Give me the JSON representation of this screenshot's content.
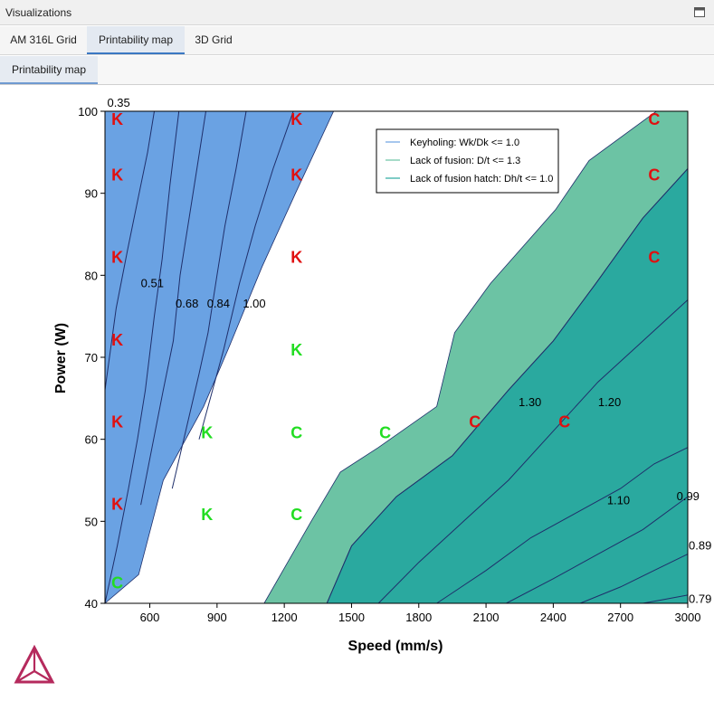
{
  "window": {
    "title": "Visualizations",
    "maximize_icon": "restore-window-icon"
  },
  "tabs": [
    {
      "label": "AM 316L Grid",
      "active": false
    },
    {
      "label": "Printability map",
      "active": true
    },
    {
      "label": "3D Grid",
      "active": false
    }
  ],
  "subtab": {
    "label": "Printability map"
  },
  "logo": {
    "icon": "thermo-calc-logo"
  },
  "colors": {
    "keyhole_fill": "#6aa2e3",
    "lof_light": "#6cc3a4",
    "lof_dark": "#2aa99f",
    "contour": "#1f2f6b",
    "marker_red": "#e01010",
    "marker_green": "#22dd22"
  },
  "chart_data": {
    "type": "contour",
    "xlabel": "Speed (mm/s)",
    "ylabel": "Power (W)",
    "xlim": [
      400,
      3000
    ],
    "ylim": [
      40,
      100
    ],
    "xticks": [
      "600",
      "900",
      "1200",
      "1500",
      "1800",
      "2100",
      "2400",
      "2700",
      "3000"
    ],
    "yticks": [
      "40",
      "50",
      "60",
      "70",
      "80",
      "90",
      "100"
    ],
    "legend": {
      "placement": "top-right",
      "entries": [
        "Keyholing: Wk/Dk <= 1.0",
        "Lack of fusion: D/t <= 1.3",
        "Lack of fusion hatch: Dh/t <= 1.0"
      ]
    },
    "regions": {
      "keyhole": [
        [
          400,
          40
        ],
        [
          550,
          43.5
        ],
        [
          660,
          55
        ],
        [
          840,
          64
        ],
        [
          950,
          71
        ],
        [
          1100,
          81
        ],
        [
          1250,
          90
        ],
        [
          1420,
          100
        ],
        [
          400,
          100
        ]
      ],
      "lack_of_fusion": [
        [
          1110,
          40
        ],
        [
          1320,
          50
        ],
        [
          1450,
          56
        ],
        [
          1620,
          59
        ],
        [
          1880,
          64
        ],
        [
          1960,
          73
        ],
        [
          2120,
          79
        ],
        [
          2410,
          88
        ],
        [
          2560,
          94
        ],
        [
          2860,
          100
        ],
        [
          3000,
          100
        ],
        [
          3000,
          40
        ]
      ],
      "lack_of_fusion_hatch": [
        [
          1390,
          40
        ],
        [
          1500,
          47
        ],
        [
          1700,
          53
        ],
        [
          1950,
          58
        ],
        [
          2200,
          66
        ],
        [
          2400,
          72
        ],
        [
          2590,
          79
        ],
        [
          2800,
          87
        ],
        [
          3000,
          93
        ],
        [
          3000,
          40
        ]
      ]
    },
    "contours": [
      {
        "label": "0.35",
        "at": [
          410,
          101
        ],
        "points": [
          [
            400,
            66
          ],
          [
            450,
            76
          ],
          [
            500,
            83
          ],
          [
            545,
            89
          ],
          [
            590,
            95
          ],
          [
            620,
            100
          ]
        ]
      },
      {
        "label": "0.51",
        "at": [
          560,
          79
        ],
        "points": [
          [
            400,
            40
          ],
          [
            455,
            47
          ],
          [
            505,
            54
          ],
          [
            545,
            60
          ],
          [
            580,
            66
          ],
          [
            620,
            75
          ],
          [
            655,
            82
          ],
          [
            690,
            91
          ],
          [
            730,
            100
          ]
        ]
      },
      {
        "label": "0.68",
        "at": [
          715,
          76.5
        ],
        "points": [
          [
            560,
            52
          ],
          [
            610,
            59
          ],
          [
            660,
            66
          ],
          [
            705,
            72
          ],
          [
            735,
            80
          ],
          [
            770,
            86
          ],
          [
            810,
            93
          ],
          [
            850,
            100
          ]
        ]
      },
      {
        "label": "0.84",
        "at": [
          855,
          76.5
        ],
        "points": [
          [
            700,
            54
          ],
          [
            760,
            61
          ],
          [
            820,
            68
          ],
          [
            860,
            73
          ],
          [
            900,
            80
          ],
          [
            935,
            86
          ],
          [
            985,
            93
          ],
          [
            1030,
            100
          ]
        ]
      },
      {
        "label": "1.00",
        "at": [
          1015,
          76.5
        ],
        "points": [
          [
            820,
            60
          ],
          [
            880,
            66
          ],
          [
            930,
            71
          ],
          [
            1000,
            79
          ],
          [
            1070,
            86
          ],
          [
            1150,
            93
          ],
          [
            1240,
            100
          ]
        ]
      },
      {
        "label": "1.30",
        "at": [
          2245,
          64.5
        ],
        "points": [
          [
            1390,
            40
          ],
          [
            1500,
            47
          ],
          [
            1700,
            53
          ],
          [
            1950,
            58
          ],
          [
            2200,
            66
          ],
          [
            2400,
            72
          ],
          [
            2590,
            79
          ],
          [
            2800,
            87
          ],
          [
            3000,
            93
          ]
        ]
      },
      {
        "label": "1.20",
        "at": [
          2600,
          64.5
        ],
        "points": [
          [
            1620,
            40
          ],
          [
            1800,
            45
          ],
          [
            2000,
            50
          ],
          [
            2200,
            55
          ],
          [
            2400,
            61
          ],
          [
            2600,
            67
          ],
          [
            2800,
            72
          ],
          [
            3000,
            77
          ]
        ]
      },
      {
        "label": "1.10",
        "at": [
          2640,
          52.5
        ],
        "points": [
          [
            1880,
            40
          ],
          [
            2100,
            44
          ],
          [
            2300,
            48
          ],
          [
            2500,
            51
          ],
          [
            2700,
            54
          ],
          [
            2850,
            57
          ],
          [
            3000,
            59
          ]
        ]
      },
      {
        "label": "0.99",
        "at": [
          2950,
          53
        ],
        "points": [
          [
            2190,
            40
          ],
          [
            2400,
            43
          ],
          [
            2600,
            46
          ],
          [
            2800,
            49
          ],
          [
            3000,
            53
          ]
        ]
      },
      {
        "label": "0.89",
        "at": [
          3000,
          47
        ],
        "points": [
          [
            2520,
            40
          ],
          [
            2700,
            42
          ],
          [
            2850,
            44
          ],
          [
            3000,
            46
          ]
        ]
      },
      {
        "label": "0.79",
        "at": [
          3000,
          40.5
        ],
        "points": [
          [
            2800,
            40
          ],
          [
            2900,
            40.5
          ],
          [
            3000,
            41
          ]
        ]
      }
    ],
    "markers": [
      {
        "label": "K",
        "x": 455,
        "y": 99,
        "color": "red"
      },
      {
        "label": "K",
        "x": 455,
        "y": 92.2,
        "color": "red"
      },
      {
        "label": "K",
        "x": 455,
        "y": 82.2,
        "color": "red"
      },
      {
        "label": "K",
        "x": 455,
        "y": 72.1,
        "color": "red"
      },
      {
        "label": "K",
        "x": 455,
        "y": 62.1,
        "color": "red"
      },
      {
        "label": "K",
        "x": 455,
        "y": 52.1,
        "color": "red"
      },
      {
        "label": "C",
        "x": 455,
        "y": 42.5,
        "color": "green"
      },
      {
        "label": "K",
        "x": 1255,
        "y": 99,
        "color": "red"
      },
      {
        "label": "K",
        "x": 1255,
        "y": 92.2,
        "color": "red"
      },
      {
        "label": "K",
        "x": 1255,
        "y": 82.2,
        "color": "red"
      },
      {
        "label": "K",
        "x": 1255,
        "y": 70.9,
        "color": "green"
      },
      {
        "label": "C",
        "x": 1255,
        "y": 60.8,
        "color": "green"
      },
      {
        "label": "C",
        "x": 1255,
        "y": 50.8,
        "color": "green"
      },
      {
        "label": "K",
        "x": 855,
        "y": 60.8,
        "color": "green"
      },
      {
        "label": "K",
        "x": 855,
        "y": 50.8,
        "color": "green"
      },
      {
        "label": "C",
        "x": 2050,
        "y": 62.1,
        "color": "red"
      },
      {
        "label": "C",
        "x": 1650,
        "y": 60.8,
        "color": "green"
      },
      {
        "label": "C",
        "x": 2450,
        "y": 62.1,
        "color": "red"
      },
      {
        "label": "C",
        "x": 2850,
        "y": 99,
        "color": "red"
      },
      {
        "label": "C",
        "x": 2850,
        "y": 92.2,
        "color": "red"
      },
      {
        "label": "C",
        "x": 2850,
        "y": 82.2,
        "color": "red"
      }
    ]
  }
}
